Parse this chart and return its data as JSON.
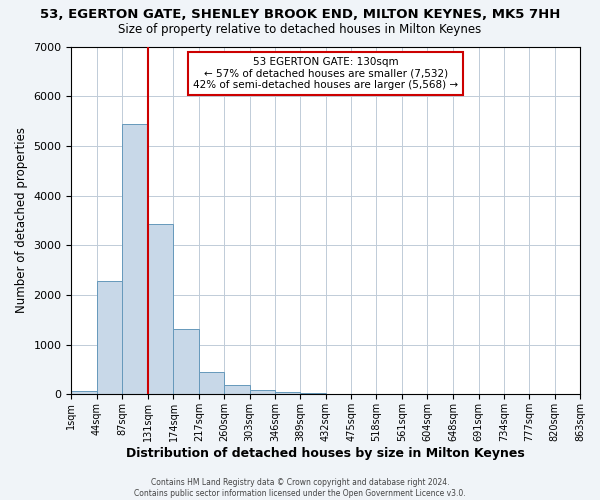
{
  "title": "53, EGERTON GATE, SHENLEY BROOK END, MILTON KEYNES, MK5 7HH",
  "subtitle": "Size of property relative to detached houses in Milton Keynes",
  "xlabel": "Distribution of detached houses by size in Milton Keynes",
  "ylabel": "Number of detached properties",
  "bar_color": "#c8d8e8",
  "bar_edge_color": "#6699bb",
  "bin_edges": [
    1,
    44,
    87,
    131,
    174,
    217,
    260,
    303,
    346,
    389,
    432,
    475,
    518,
    561,
    604,
    648,
    691,
    734,
    777,
    820,
    863
  ],
  "bar_heights": [
    75,
    2275,
    5450,
    3430,
    1320,
    450,
    185,
    90,
    55,
    30,
    0,
    0,
    0,
    0,
    0,
    0,
    0,
    0,
    0,
    0
  ],
  "tick_labels": [
    "1sqm",
    "44sqm",
    "87sqm",
    "131sqm",
    "174sqm",
    "217sqm",
    "260sqm",
    "303sqm",
    "346sqm",
    "389sqm",
    "432sqm",
    "475sqm",
    "518sqm",
    "561sqm",
    "604sqm",
    "648sqm",
    "691sqm",
    "734sqm",
    "777sqm",
    "820sqm",
    "863sqm"
  ],
  "ylim": [
    0,
    7000
  ],
  "yticks": [
    0,
    1000,
    2000,
    3000,
    4000,
    5000,
    6000,
    7000
  ],
  "vline_x": 131,
  "vline_color": "#cc0000",
  "annotation_title": "53 EGERTON GATE: 130sqm",
  "annotation_line1": "← 57% of detached houses are smaller (7,532)",
  "annotation_line2": "42% of semi-detached houses are larger (5,568) →",
  "annotation_box_color": "#ffffff",
  "annotation_box_edge": "#cc0000",
  "footer_line1": "Contains HM Land Registry data © Crown copyright and database right 2024.",
  "footer_line2": "Contains public sector information licensed under the Open Government Licence v3.0.",
  "background_color": "#f0f4f8",
  "plot_bg_color": "#ffffff"
}
